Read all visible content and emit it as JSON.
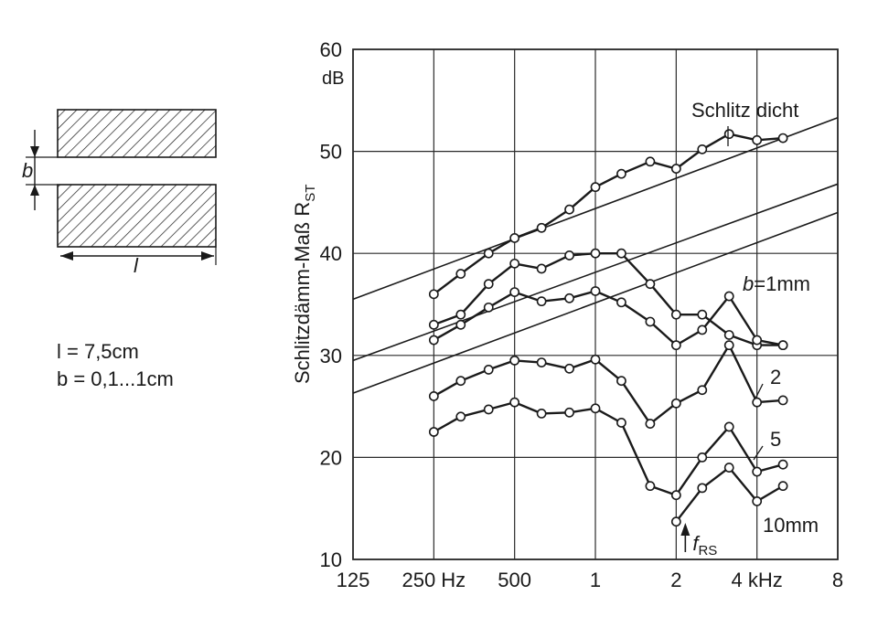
{
  "diagram": {
    "dim_b": "b",
    "dim_l": "l",
    "l_spec": "l = 7,5cm",
    "b_spec": "b = 0,1...1cm"
  },
  "chart_data": {
    "type": "line",
    "ylabel_main": "Schlitzdämm-Maß R",
    "ylabel_sub": "ST",
    "y_unit": "dB",
    "ylim": [
      10,
      60
    ],
    "y_ticks": [
      "10",
      "20",
      "30",
      "40",
      "50",
      "60"
    ],
    "x_scale": "log2",
    "x_ticks": [
      {
        "hz": 125,
        "label": "125"
      },
      {
        "hz": 250,
        "label": "250 Hz"
      },
      {
        "hz": 500,
        "label": "500"
      },
      {
        "hz": 1000,
        "label": "1"
      },
      {
        "hz": 2000,
        "label": "2"
      },
      {
        "hz": 4000,
        "label": "4  kHz"
      },
      {
        "hz": 8000,
        "label": "8"
      }
    ],
    "grid": true,
    "x": [
      250,
      315,
      400,
      500,
      630,
      800,
      1000,
      1250,
      1600,
      2000,
      2500,
      3150,
      4000,
      5000
    ],
    "series": [
      {
        "name": "Schlitz dicht",
        "values": [
          36,
          38,
          40,
          41.5,
          42.5,
          44.3,
          46.5,
          47.8,
          49,
          48.3,
          50.2,
          51.7,
          51.1,
          51.3
        ]
      },
      {
        "name": "",
        "values": [
          33,
          34,
          37,
          39,
          38.5,
          39.8,
          40,
          40,
          37,
          34,
          34,
          32,
          31,
          31
        ]
      },
      {
        "name": "b = 1mm",
        "values": [
          31.5,
          33,
          34.7,
          36.2,
          35.3,
          35.6,
          36.3,
          35.2,
          33.3,
          31,
          32.5,
          35.8,
          31.5,
          31
        ]
      },
      {
        "name": "2",
        "values": [
          26,
          27.5,
          28.6,
          29.5,
          29.3,
          28.7,
          29.6,
          27.5,
          23.3,
          25.3,
          26.6,
          31,
          25.4,
          25.6
        ]
      },
      {
        "name": "5",
        "values": [
          22.5,
          24,
          24.7,
          25.4,
          24.3,
          24.4,
          24.8,
          23.4,
          17.2,
          16.3,
          20,
          23,
          18.6,
          19.3
        ]
      },
      {
        "name": "10mm",
        "values": [
          null,
          null,
          null,
          null,
          null,
          null,
          null,
          null,
          null,
          13.7,
          17,
          19,
          15.7,
          17.2
        ]
      }
    ],
    "reference_lines": [
      {
        "from": [
          125,
          35.5
        ],
        "to": [
          8000,
          53.3
        ]
      },
      {
        "from": [
          125,
          29.5
        ],
        "to": [
          8000,
          46.8
        ]
      },
      {
        "from": [
          125,
          26.3
        ],
        "to": [
          8000,
          44
        ]
      }
    ],
    "labels": {
      "schlitz_dicht": "Schlitz  dicht",
      "b1mm_prefix": "b",
      "b1mm_value": "=1mm",
      "b2": "2",
      "b5": "5",
      "b10": "10mm",
      "f_rs_main": "f",
      "f_rs_sub": "RS",
      "f_rs_hz": 2000
    }
  }
}
